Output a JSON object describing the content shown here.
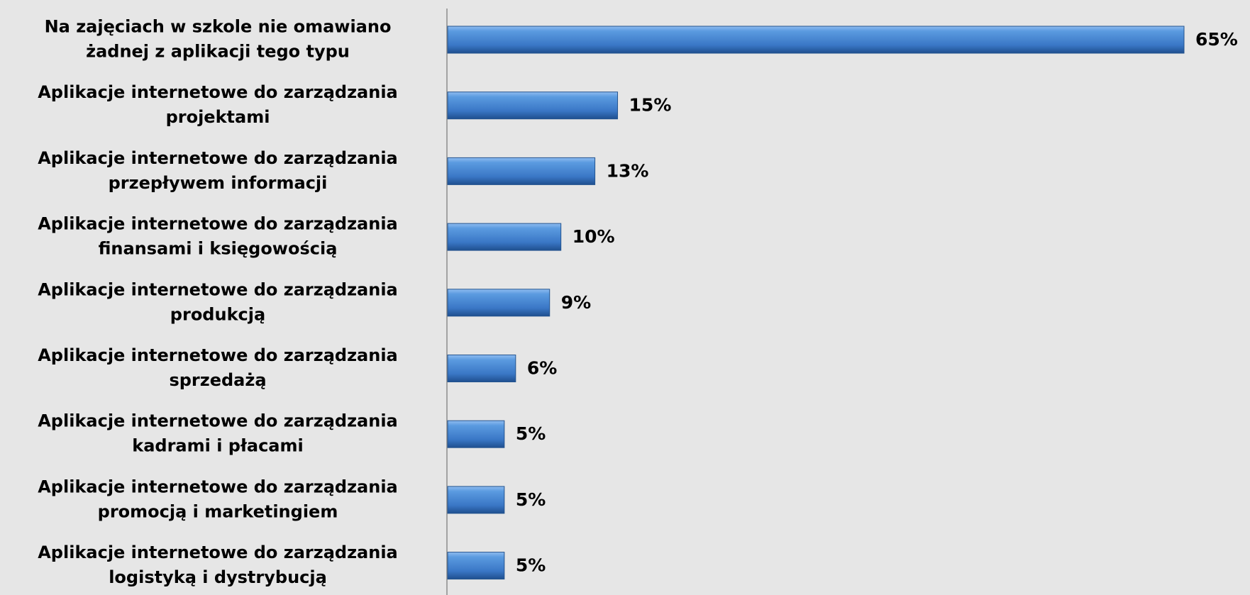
{
  "chart_data": {
    "type": "bar",
    "orientation": "horizontal",
    "categories": [
      [
        "Na zajęciach w szkole nie omawiano",
        "żadnej z aplikacji tego typu"
      ],
      [
        "Aplikacje internetowe do zarządzania",
        "projektami"
      ],
      [
        "Aplikacje internetowe do zarządzania",
        "przepływem informacji"
      ],
      [
        "Aplikacje internetowe do zarządzania",
        "finansami i księgowością"
      ],
      [
        "Aplikacje internetowe do zarządzania",
        "produkcją"
      ],
      [
        "Aplikacje internetowe do zarządzania",
        "sprzedażą"
      ],
      [
        "Aplikacje internetowe do zarządzania",
        "kadrami i płacami"
      ],
      [
        "Aplikacje internetowe do zarządzania",
        "promocją i marketingiem"
      ],
      [
        "Aplikacje internetowe do zarządzania",
        "logistyką i dystrybucją"
      ]
    ],
    "values": [
      65,
      15,
      13,
      10,
      9,
      6,
      5,
      5,
      5
    ],
    "value_labels": [
      "65%",
      "15%",
      "13%",
      "10%",
      "9%",
      "6%",
      "5%",
      "5%",
      "5%"
    ],
    "color": "#4a86d0"
  }
}
